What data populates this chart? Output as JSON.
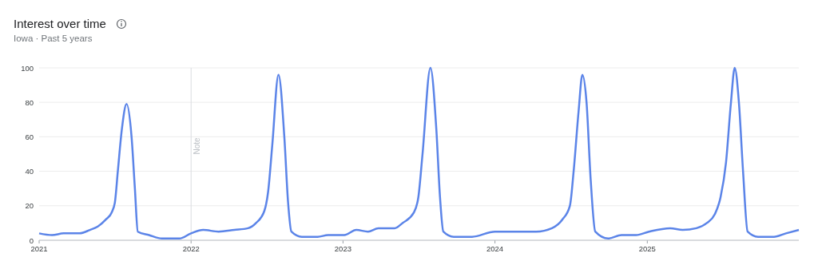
{
  "chart_data": {
    "type": "line",
    "title": "Interest over time",
    "subtitle": "Iowa · Past 5 years",
    "xlim": [
      "2021-01-01",
      "2025-12-31"
    ],
    "xticks": [
      "2021",
      "2022",
      "2023",
      "2024",
      "2025"
    ],
    "ylim": [
      0,
      100
    ],
    "yticks": [
      0,
      20,
      40,
      60,
      80,
      100
    ],
    "grid": "y",
    "marker": "none",
    "line_style": "solid",
    "ref_lines": [
      {
        "axis": "x",
        "value": "2022-01-01",
        "label": "Note",
        "color": "#dadce0"
      }
    ],
    "series": [
      {
        "color": "#5b84e8",
        "x": [
          "2021-01-01",
          "2021-02-01",
          "2021-03-01",
          "2021-04-08",
          "2021-05-03",
          "2021-05-22",
          "2021-06-10",
          "2021-06-24",
          "2021-07-02",
          "2021-07-09",
          "2021-07-19",
          "2021-07-30",
          "2021-08-11",
          "2021-08-19",
          "2021-08-26",
          "2021-09-22",
          "2021-10-23",
          "2021-12-04",
          "2022-01-01",
          "2022-01-30",
          "2022-03-08",
          "2022-04-15",
          "2022-05-18",
          "2022-06-06",
          "2022-06-26",
          "2022-07-05",
          "2022-07-15",
          "2022-07-30",
          "2022-08-13",
          "2022-08-22",
          "2022-08-30",
          "2022-09-24",
          "2022-11-01",
          "2022-11-26",
          "2023-01-04",
          "2023-02-02",
          "2023-03-02",
          "2023-03-27",
          "2023-05-05",
          "2023-05-24",
          "2023-06-20",
          "2023-07-01",
          "2023-07-11",
          "2023-07-30",
          "2023-08-13",
          "2023-08-22",
          "2023-08-30",
          "2023-09-24",
          "2023-11-07",
          "2024-01-01",
          "2024-04-09",
          "2024-05-17",
          "2024-06-11",
          "2024-06-29",
          "2024-07-08",
          "2024-07-20",
          "2024-07-29",
          "2024-08-08",
          "2024-08-18",
          "2024-08-29",
          "2024-09-29",
          "2024-10-31",
          "2024-12-05",
          "2025-01-05",
          "2025-02-25",
          "2025-03-27",
          "2025-04-29",
          "2025-05-24",
          "2025-06-12",
          "2025-06-26",
          "2025-07-09",
          "2025-07-21",
          "2025-07-30",
          "2025-08-09",
          "2025-08-19",
          "2025-08-30",
          "2025-09-24",
          "2025-11-01",
          "2025-11-30",
          "2025-12-31"
        ],
        "values": [
          4,
          3,
          4,
          4,
          6,
          8,
          12,
          16,
          22,
          40,
          65,
          79,
          60,
          30,
          5,
          3,
          1,
          1,
          4,
          6,
          5,
          6,
          7,
          10,
          17,
          28,
          55,
          96,
          60,
          22,
          5,
          2,
          2,
          3,
          3,
          6,
          5,
          7,
          7,
          10,
          16,
          25,
          50,
          100,
          65,
          25,
          5,
          2,
          2,
          5,
          5,
          7,
          12,
          20,
          40,
          75,
          96,
          80,
          35,
          5,
          1,
          3,
          3,
          5,
          7,
          6,
          7,
          10,
          15,
          25,
          45,
          80,
          100,
          80,
          40,
          5,
          2,
          2,
          4,
          6
        ]
      }
    ]
  }
}
